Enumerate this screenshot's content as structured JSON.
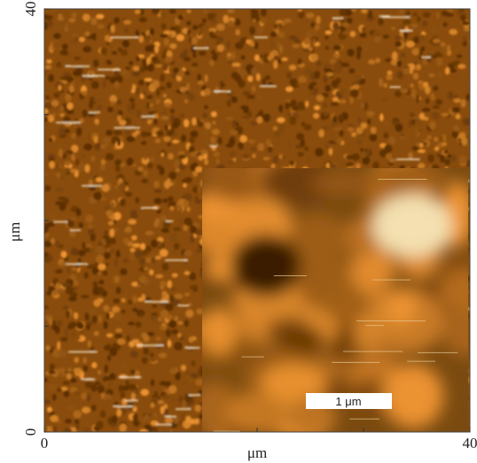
{
  "chart_data": {
    "type": "image",
    "xlabel": "μm",
    "ylabel": "μm",
    "xlim": [
      0,
      40
    ],
    "ylim": [
      0,
      40
    ],
    "xticks": [
      0,
      40
    ],
    "yticks": [
      0,
      40
    ],
    "minor_xticks": [
      10,
      20,
      30
    ],
    "minor_yticks": [
      10,
      20,
      30
    ],
    "inset": {
      "scale_bar": "1 μm"
    }
  }
}
